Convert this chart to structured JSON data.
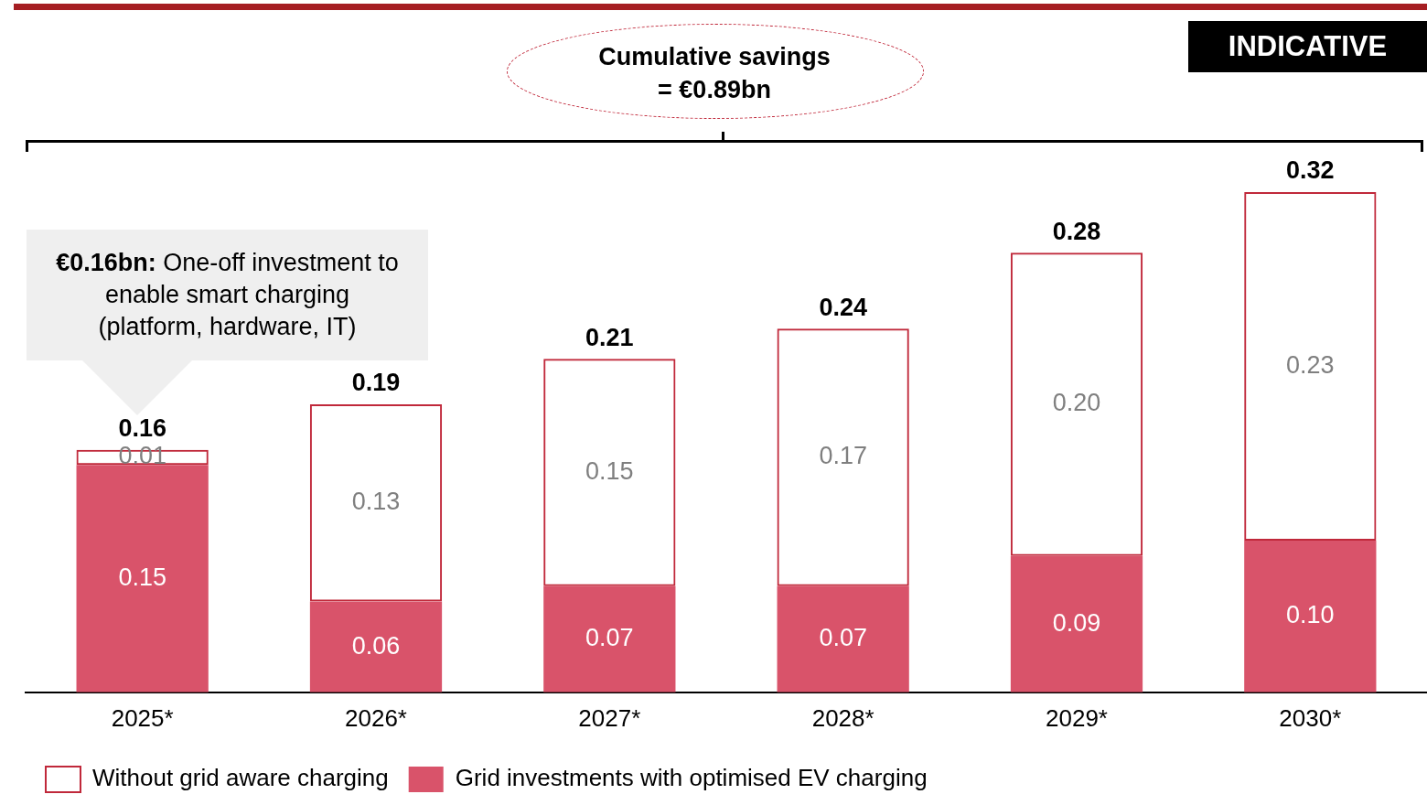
{
  "chart_data": {
    "type": "bar",
    "stacked": true,
    "categories": [
      "2025*",
      "2026*",
      "2027*",
      "2028*",
      "2029*",
      "2030*"
    ],
    "series": [
      {
        "name": "Grid investments with optimised EV charging",
        "color": "#d9536a",
        "values": [
          0.15,
          0.06,
          0.07,
          0.07,
          0.09,
          0.1
        ],
        "value_labels": [
          "0.15",
          "0.06",
          "0.07",
          "0.07",
          "0.09",
          "0.10"
        ]
      },
      {
        "name": "Without grid aware charging",
        "color": "#c0283a",
        "line_style": "dashed",
        "values": [
          0.01,
          0.13,
          0.15,
          0.17,
          0.2,
          0.23
        ],
        "value_labels": [
          "0.01",
          "0.13",
          "0.15",
          "0.17",
          "0.20",
          "0.23"
        ]
      }
    ],
    "totals": [
      "0.16",
      "0.19",
      "0.21",
      "0.24",
      "0.28",
      "0.32"
    ],
    "legend": "bottom left",
    "grid": false,
    "tick_labels": "x",
    "annotations": [
      "INDICATIVE",
      "Cumulative savings = €0.89bn",
      "€0.16bn: One-off investment to enable smart charging (platform, hardware, IT)"
    ]
  }
}
